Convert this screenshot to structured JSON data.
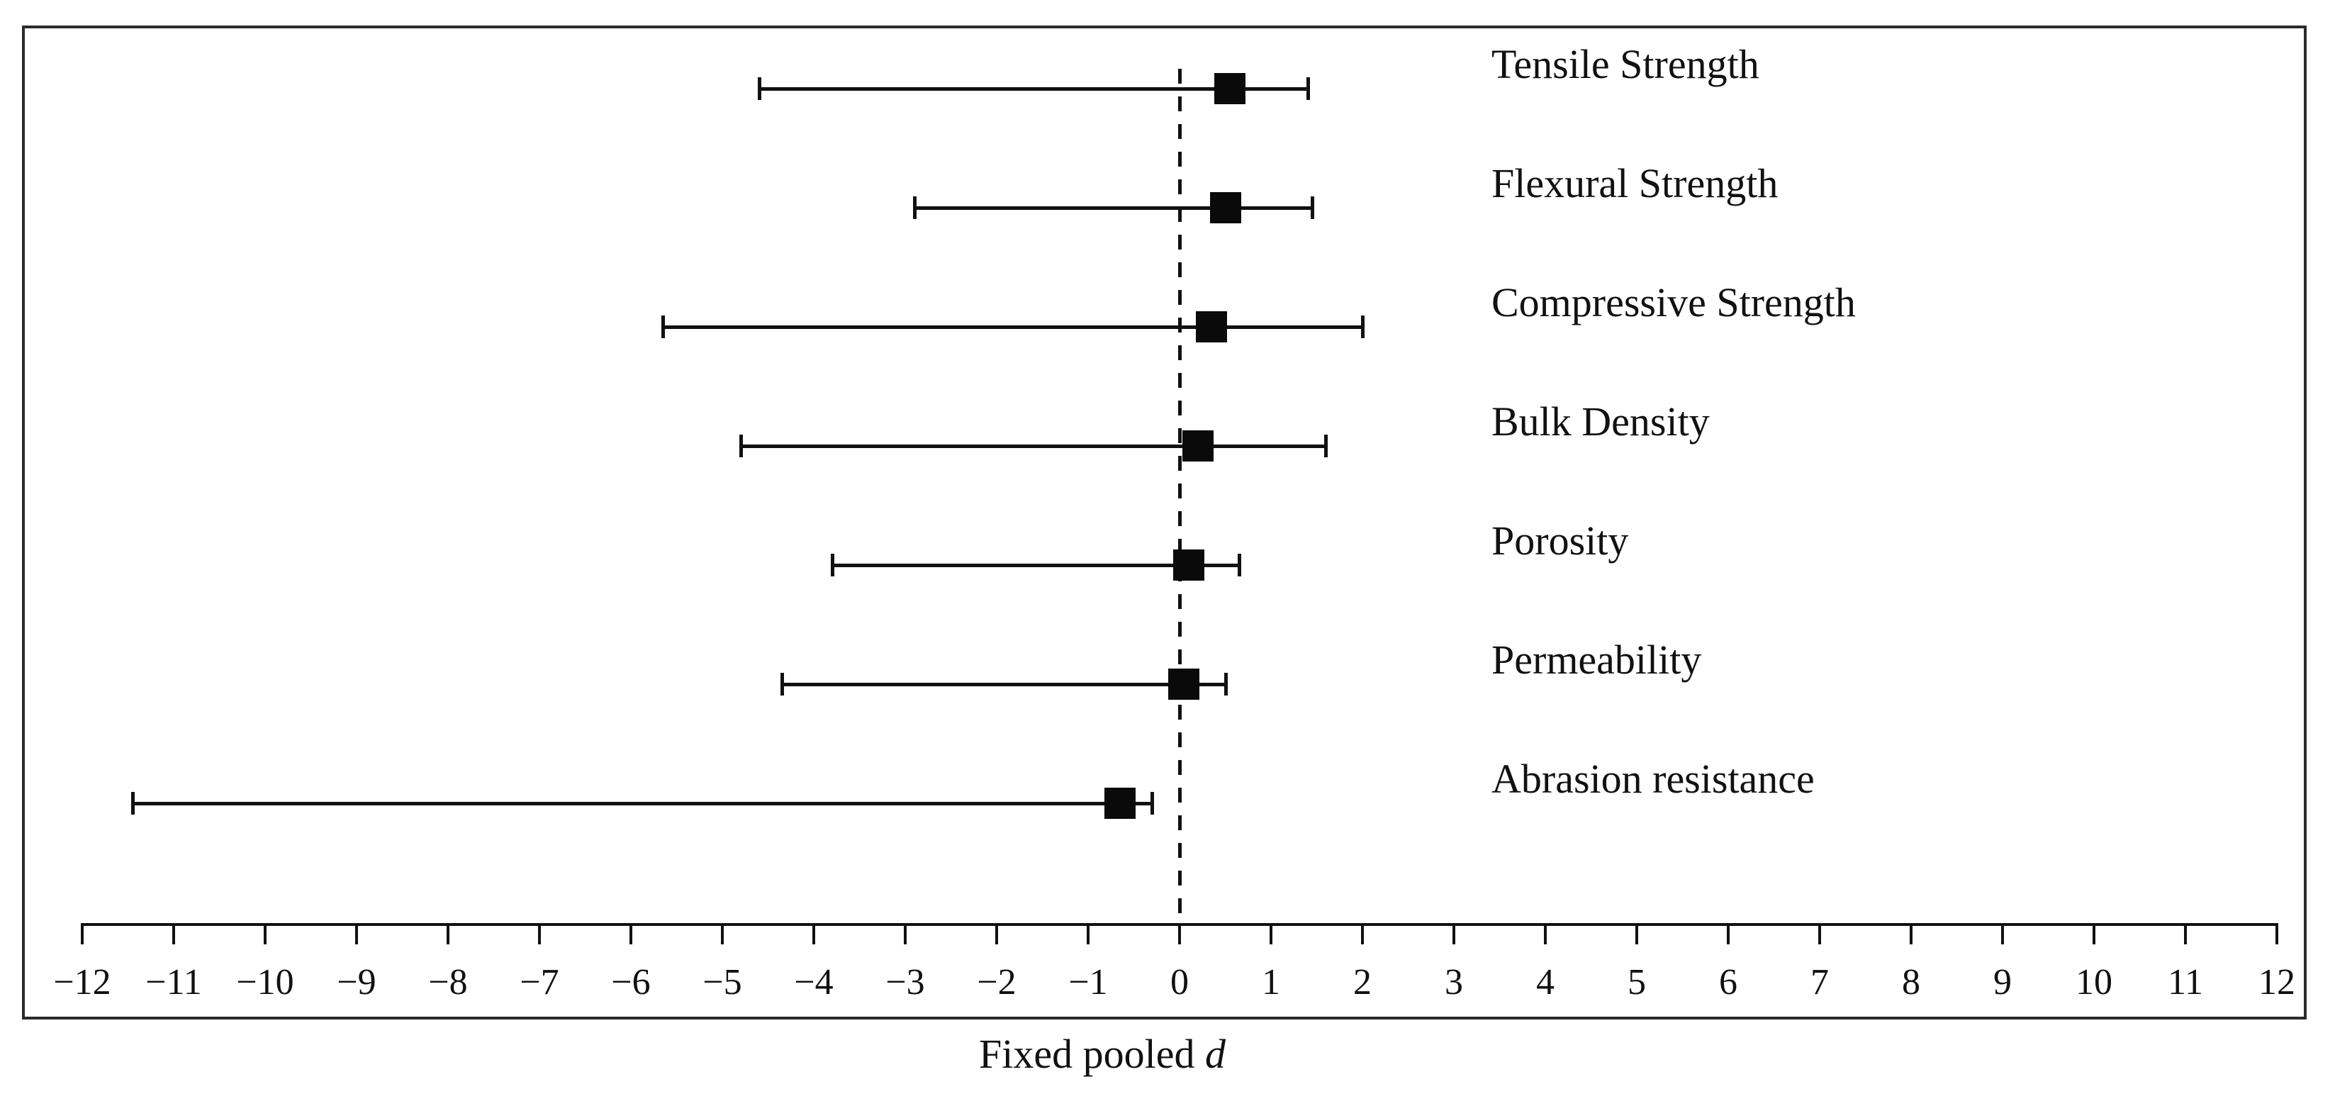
{
  "chart_data": {
    "type": "forest",
    "title": "",
    "xlabel_prefix": "Fixed pooled",
    "xlabel_symbol": "d",
    "xlim": [
      -12.5,
      12.5
    ],
    "zero_line_value": 0,
    "grid": "off",
    "marker": "filled-square",
    "colors": {
      "foreground": "#111111",
      "background": "#ffffff"
    },
    "x_ticks": [
      {
        "value": -12,
        "label": "−12"
      },
      {
        "value": -11,
        "label": "−11"
      },
      {
        "value": -10,
        "label": "−10"
      },
      {
        "value": -9,
        "label": "−9"
      },
      {
        "value": -8,
        "label": "−8"
      },
      {
        "value": -7,
        "label": "−7"
      },
      {
        "value": -6,
        "label": "−6"
      },
      {
        "value": -5,
        "label": "−5"
      },
      {
        "value": -4,
        "label": "−4"
      },
      {
        "value": -3,
        "label": "−3"
      },
      {
        "value": -2,
        "label": "−2"
      },
      {
        "value": -1,
        "label": "−1"
      },
      {
        "value": 0,
        "label": "0"
      },
      {
        "value": 1,
        "label": "1"
      },
      {
        "value": 2,
        "label": "2"
      },
      {
        "value": 3,
        "label": "3"
      },
      {
        "value": 4,
        "label": "4"
      },
      {
        "value": 5,
        "label": "5"
      },
      {
        "value": 6,
        "label": "6"
      },
      {
        "value": 7,
        "label": "7"
      },
      {
        "value": 8,
        "label": "8"
      },
      {
        "value": 9,
        "label": "9"
      },
      {
        "value": 10,
        "label": "10"
      },
      {
        "value": 11,
        "label": "11"
      },
      {
        "value": 12,
        "label": "12"
      }
    ],
    "series": [
      {
        "label": "Tensile Strength",
        "d": 0.55,
        "ci_low": -4.6,
        "ci_high": 1.4
      },
      {
        "label": "Flexural Strength",
        "d": 0.5,
        "ci_low": -2.9,
        "ci_high": 1.45
      },
      {
        "label": "Compressive Strength",
        "d": 0.35,
        "ci_low": -5.65,
        "ci_high": 2.0
      },
      {
        "label": "Bulk Density",
        "d": 0.2,
        "ci_low": -4.8,
        "ci_high": 1.6
      },
      {
        "label": "Porosity",
        "d": 0.1,
        "ci_low": -3.8,
        "ci_high": 0.65
      },
      {
        "label": "Permeability",
        "d": 0.05,
        "ci_low": -4.35,
        "ci_high": 0.5
      },
      {
        "label": "Abrasion resistance",
        "d": -0.65,
        "ci_low": -11.45,
        "ci_high": -0.3
      }
    ]
  }
}
